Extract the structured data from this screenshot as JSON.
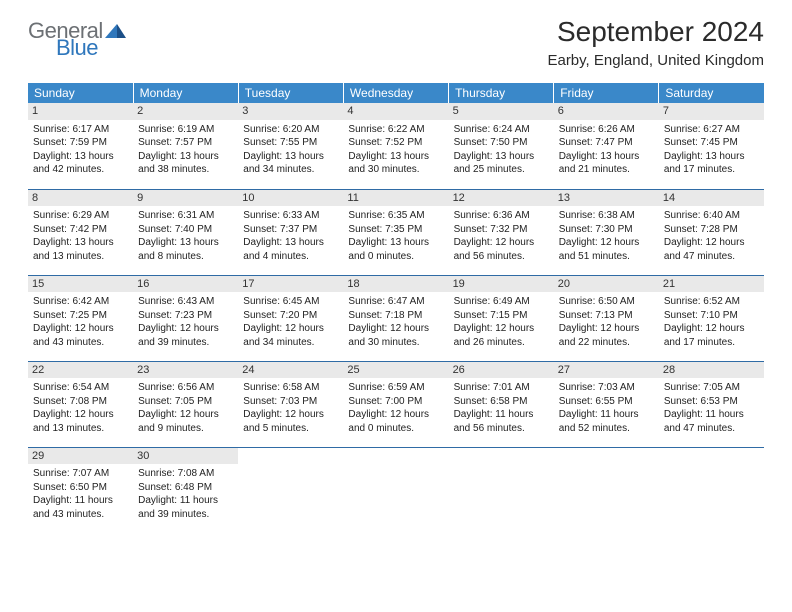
{
  "logo": {
    "general": "General",
    "blue": "Blue"
  },
  "title": "September 2024",
  "location": "Earby, England, United Kingdom",
  "colors": {
    "header_bg": "#3a88c9",
    "header_text": "#ffffff",
    "row_border": "#2f6ba5",
    "daynum_bg": "#e9e9e9",
    "logo_gray": "#6c7074",
    "logo_blue": "#2f77bc"
  },
  "day_headers": [
    "Sunday",
    "Monday",
    "Tuesday",
    "Wednesday",
    "Thursday",
    "Friday",
    "Saturday"
  ],
  "weeks": [
    [
      {
        "n": "1",
        "sunrise": "Sunrise: 6:17 AM",
        "sunset": "Sunset: 7:59 PM",
        "daylight": "Daylight: 13 hours and 42 minutes."
      },
      {
        "n": "2",
        "sunrise": "Sunrise: 6:19 AM",
        "sunset": "Sunset: 7:57 PM",
        "daylight": "Daylight: 13 hours and 38 minutes."
      },
      {
        "n": "3",
        "sunrise": "Sunrise: 6:20 AM",
        "sunset": "Sunset: 7:55 PM",
        "daylight": "Daylight: 13 hours and 34 minutes."
      },
      {
        "n": "4",
        "sunrise": "Sunrise: 6:22 AM",
        "sunset": "Sunset: 7:52 PM",
        "daylight": "Daylight: 13 hours and 30 minutes."
      },
      {
        "n": "5",
        "sunrise": "Sunrise: 6:24 AM",
        "sunset": "Sunset: 7:50 PM",
        "daylight": "Daylight: 13 hours and 25 minutes."
      },
      {
        "n": "6",
        "sunrise": "Sunrise: 6:26 AM",
        "sunset": "Sunset: 7:47 PM",
        "daylight": "Daylight: 13 hours and 21 minutes."
      },
      {
        "n": "7",
        "sunrise": "Sunrise: 6:27 AM",
        "sunset": "Sunset: 7:45 PM",
        "daylight": "Daylight: 13 hours and 17 minutes."
      }
    ],
    [
      {
        "n": "8",
        "sunrise": "Sunrise: 6:29 AM",
        "sunset": "Sunset: 7:42 PM",
        "daylight": "Daylight: 13 hours and 13 minutes."
      },
      {
        "n": "9",
        "sunrise": "Sunrise: 6:31 AM",
        "sunset": "Sunset: 7:40 PM",
        "daylight": "Daylight: 13 hours and 8 minutes."
      },
      {
        "n": "10",
        "sunrise": "Sunrise: 6:33 AM",
        "sunset": "Sunset: 7:37 PM",
        "daylight": "Daylight: 13 hours and 4 minutes."
      },
      {
        "n": "11",
        "sunrise": "Sunrise: 6:35 AM",
        "sunset": "Sunset: 7:35 PM",
        "daylight": "Daylight: 13 hours and 0 minutes."
      },
      {
        "n": "12",
        "sunrise": "Sunrise: 6:36 AM",
        "sunset": "Sunset: 7:32 PM",
        "daylight": "Daylight: 12 hours and 56 minutes."
      },
      {
        "n": "13",
        "sunrise": "Sunrise: 6:38 AM",
        "sunset": "Sunset: 7:30 PM",
        "daylight": "Daylight: 12 hours and 51 minutes."
      },
      {
        "n": "14",
        "sunrise": "Sunrise: 6:40 AM",
        "sunset": "Sunset: 7:28 PM",
        "daylight": "Daylight: 12 hours and 47 minutes."
      }
    ],
    [
      {
        "n": "15",
        "sunrise": "Sunrise: 6:42 AM",
        "sunset": "Sunset: 7:25 PM",
        "daylight": "Daylight: 12 hours and 43 minutes."
      },
      {
        "n": "16",
        "sunrise": "Sunrise: 6:43 AM",
        "sunset": "Sunset: 7:23 PM",
        "daylight": "Daylight: 12 hours and 39 minutes."
      },
      {
        "n": "17",
        "sunrise": "Sunrise: 6:45 AM",
        "sunset": "Sunset: 7:20 PM",
        "daylight": "Daylight: 12 hours and 34 minutes."
      },
      {
        "n": "18",
        "sunrise": "Sunrise: 6:47 AM",
        "sunset": "Sunset: 7:18 PM",
        "daylight": "Daylight: 12 hours and 30 minutes."
      },
      {
        "n": "19",
        "sunrise": "Sunrise: 6:49 AM",
        "sunset": "Sunset: 7:15 PM",
        "daylight": "Daylight: 12 hours and 26 minutes."
      },
      {
        "n": "20",
        "sunrise": "Sunrise: 6:50 AM",
        "sunset": "Sunset: 7:13 PM",
        "daylight": "Daylight: 12 hours and 22 minutes."
      },
      {
        "n": "21",
        "sunrise": "Sunrise: 6:52 AM",
        "sunset": "Sunset: 7:10 PM",
        "daylight": "Daylight: 12 hours and 17 minutes."
      }
    ],
    [
      {
        "n": "22",
        "sunrise": "Sunrise: 6:54 AM",
        "sunset": "Sunset: 7:08 PM",
        "daylight": "Daylight: 12 hours and 13 minutes."
      },
      {
        "n": "23",
        "sunrise": "Sunrise: 6:56 AM",
        "sunset": "Sunset: 7:05 PM",
        "daylight": "Daylight: 12 hours and 9 minutes."
      },
      {
        "n": "24",
        "sunrise": "Sunrise: 6:58 AM",
        "sunset": "Sunset: 7:03 PM",
        "daylight": "Daylight: 12 hours and 5 minutes."
      },
      {
        "n": "25",
        "sunrise": "Sunrise: 6:59 AM",
        "sunset": "Sunset: 7:00 PM",
        "daylight": "Daylight: 12 hours and 0 minutes."
      },
      {
        "n": "26",
        "sunrise": "Sunrise: 7:01 AM",
        "sunset": "Sunset: 6:58 PM",
        "daylight": "Daylight: 11 hours and 56 minutes."
      },
      {
        "n": "27",
        "sunrise": "Sunrise: 7:03 AM",
        "sunset": "Sunset: 6:55 PM",
        "daylight": "Daylight: 11 hours and 52 minutes."
      },
      {
        "n": "28",
        "sunrise": "Sunrise: 7:05 AM",
        "sunset": "Sunset: 6:53 PM",
        "daylight": "Daylight: 11 hours and 47 minutes."
      }
    ],
    [
      {
        "n": "29",
        "sunrise": "Sunrise: 7:07 AM",
        "sunset": "Sunset: 6:50 PM",
        "daylight": "Daylight: 11 hours and 43 minutes."
      },
      {
        "n": "30",
        "sunrise": "Sunrise: 7:08 AM",
        "sunset": "Sunset: 6:48 PM",
        "daylight": "Daylight: 11 hours and 39 minutes."
      },
      null,
      null,
      null,
      null,
      null
    ]
  ]
}
